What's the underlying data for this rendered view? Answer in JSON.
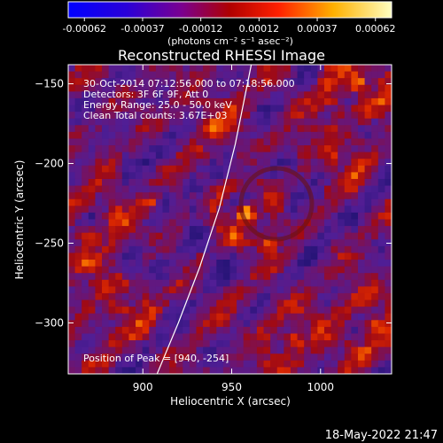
{
  "chart_data": {
    "type": "heatmap",
    "title": "Reconstructed RHESSI Image",
    "xlabel": "Heliocentric X (arcsec)",
    "ylabel": "Heliocentric Y (arcsec)",
    "xlim": [
      858,
      1040
    ],
    "ylim": [
      -332,
      -138
    ],
    "x_ticks": [
      900,
      950,
      1000
    ],
    "y_ticks": [
      -150,
      -200,
      -250,
      -300
    ],
    "colorbar": {
      "ticks": [
        "-0.00062",
        "-0.00037",
        "-0.00012",
        "0.00012",
        "0.00037",
        "0.00062"
      ],
      "unit_label": "(photons cm⁻² s⁻¹ asec⁻²)",
      "range": [
        -0.00062,
        0.00062
      ]
    },
    "annotations": [
      "30-Oct-2014 07:12:56.000 to 07:18:56.000",
      "Detectors: 3F 6F 9F, Att 0",
      "Energy Range: 25.0 - 50.0 keV",
      "Clean     Total counts: 3.67E+03",
      "Position of Peak = [940, -254]"
    ],
    "peak": [
      940,
      -254
    ],
    "limb_curve": [
      [
        908,
        -332
      ],
      [
        920,
        -300
      ],
      [
        932,
        -265
      ],
      [
        943,
        -228
      ],
      [
        952,
        -188
      ],
      [
        961,
        -138
      ]
    ]
  },
  "footer": {
    "timestamp": "18-May-2022 21:47"
  }
}
